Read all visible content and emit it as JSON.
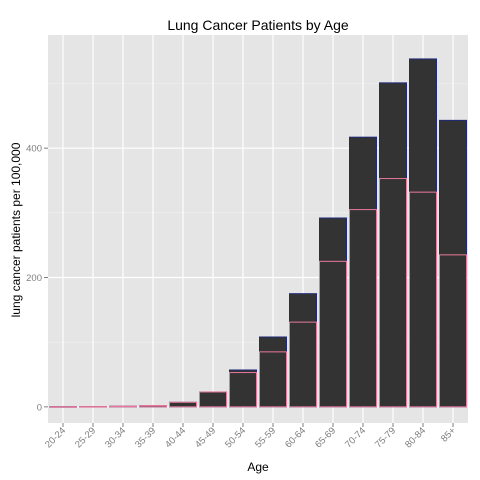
{
  "chart_data": {
    "type": "bar",
    "title": "Lung Cancer Patients by Age",
    "xlabel": "Age",
    "ylabel": "lung cancer patients per 100,000",
    "categories": [
      "20-24",
      "25-29",
      "30-34",
      "35-39",
      "40-44",
      "45-49",
      "50-54",
      "55-59",
      "60-64",
      "65-69",
      "70-74",
      "75-79",
      "80-84",
      "85+"
    ],
    "series": [
      {
        "values": [
          0.3,
          0.5,
          1,
          2,
          7,
          23,
          57,
          108,
          175,
          292,
          417,
          501,
          538,
          443
        ],
        "color": "#333333",
        "outline": "#1f2a7a"
      },
      {
        "values": [
          0.2,
          0.4,
          1,
          2,
          7,
          23,
          53,
          85,
          131,
          225,
          305,
          353,
          332,
          235
        ],
        "color": "#333333",
        "outline": "#e9799a"
      }
    ],
    "ylim": [
      -25,
      575
    ],
    "yticks": [
      0,
      200,
      400
    ],
    "grid": true,
    "panel_background": "#e5e5e5",
    "grid_color": "#ffffff",
    "legend": "none"
  }
}
